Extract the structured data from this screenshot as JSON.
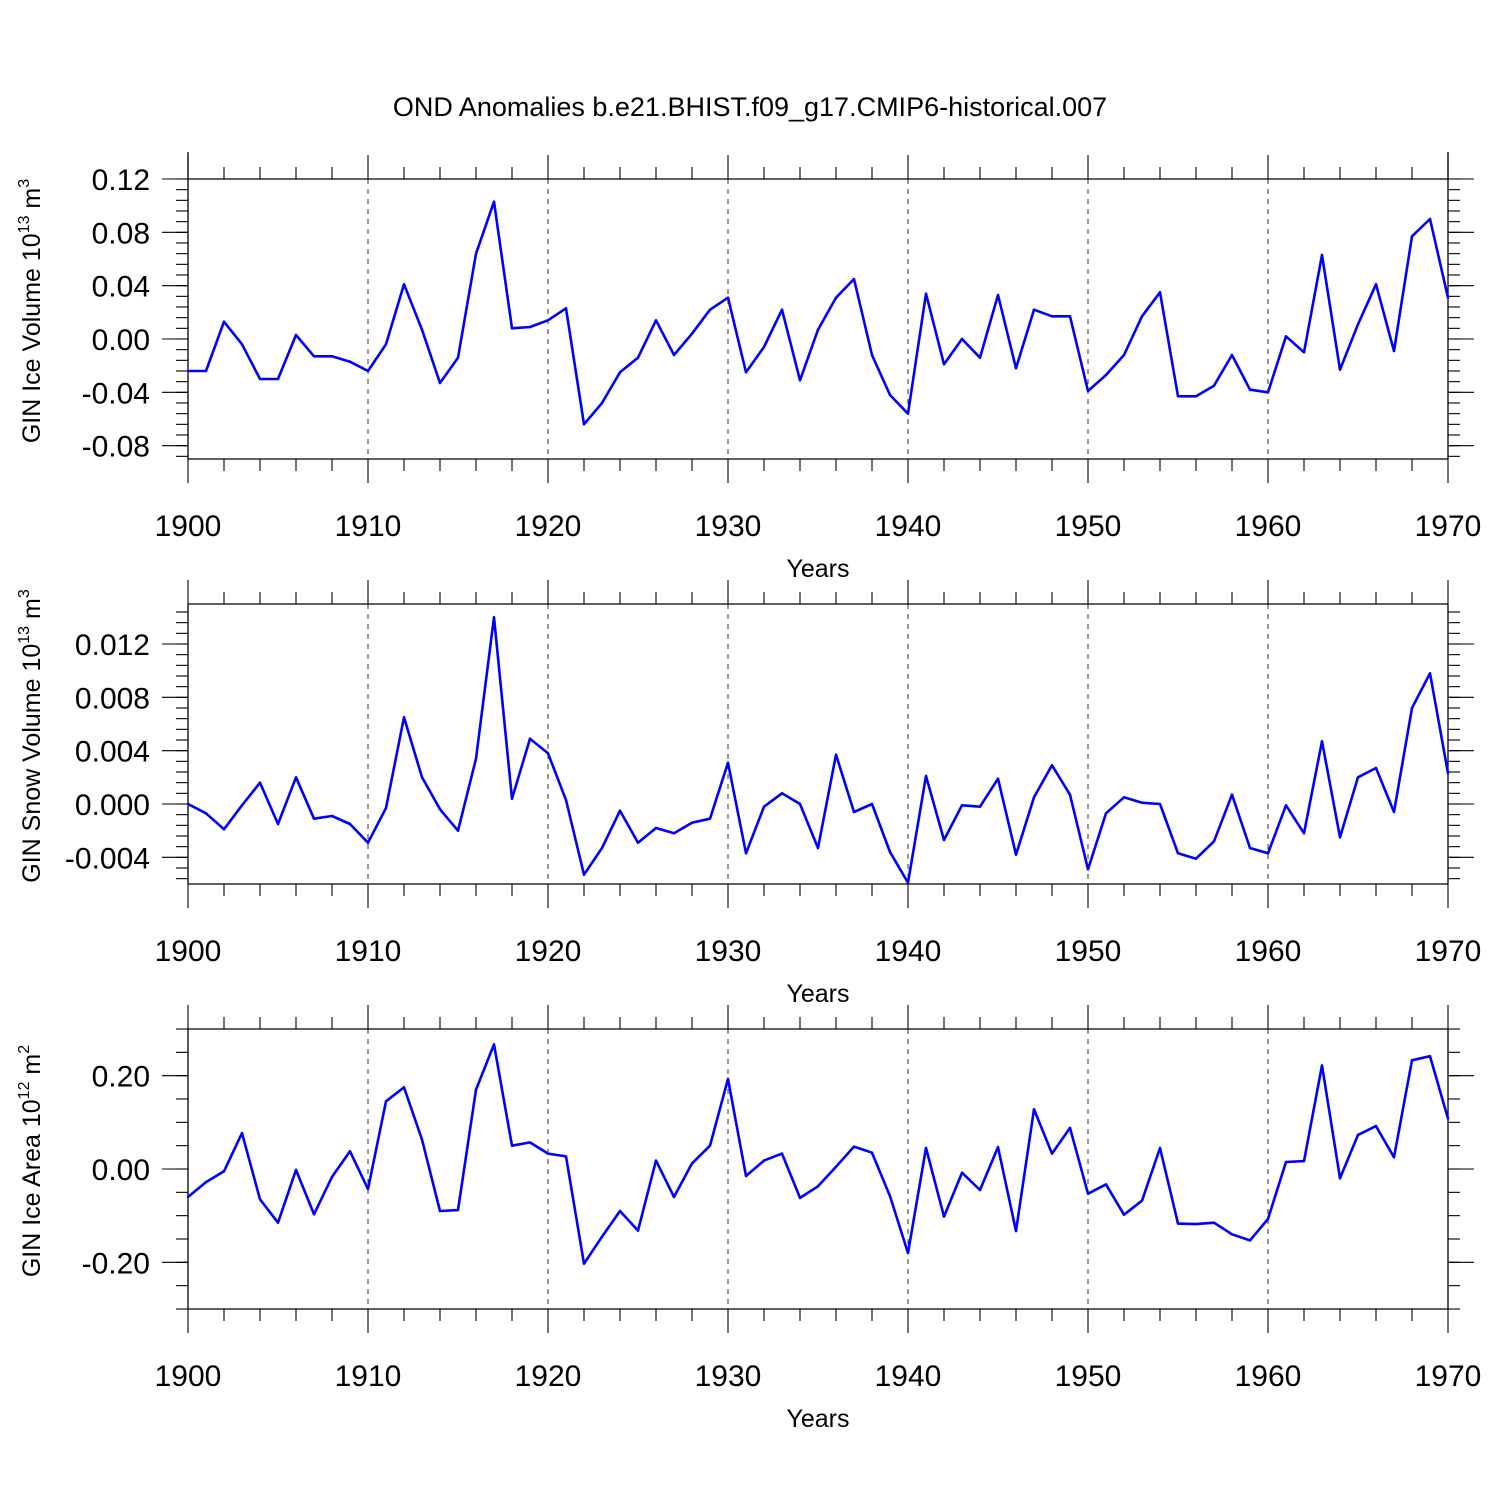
{
  "figure": {
    "title": "OND Anomalies b.e21.BHIST.f09_g17.CMIP6-historical.007",
    "line_color": "#0000ff"
  },
  "chart_data": [
    {
      "type": "line",
      "ylabel_main": "GIN Ice Volume 10",
      "ylabel_exp": "13",
      "ylabel_unit": " m",
      "ylabel_unit_exp": "3",
      "xlabel": "Years",
      "xlim": [
        1900,
        1970
      ],
      "ylim": [
        -0.09,
        0.12
      ],
      "xticks": [
        1900,
        1910,
        1920,
        1930,
        1940,
        1950,
        1960,
        1970
      ],
      "xtick_labels": [
        "1900",
        "1910",
        "1920",
        "1930",
        "1940",
        "1950",
        "1960",
        "1970"
      ],
      "yticks": [
        0.12,
        0.08,
        0.04,
        0.0,
        -0.04,
        -0.08
      ],
      "ytick_labels": [
        "0.12",
        "0.08",
        "0.04",
        "0.00",
        "-0.04",
        "-0.08"
      ],
      "y_minor_step": 0.008,
      "x_start": 1900,
      "values": [
        -0.024,
        -0.024,
        0.013,
        -0.004,
        -0.03,
        -0.03,
        0.003,
        -0.013,
        -0.013,
        -0.017,
        -0.024,
        -0.004,
        0.041,
        0.007,
        -0.033,
        -0.014,
        0.064,
        0.103,
        0.008,
        0.009,
        0.014,
        0.023,
        -0.064,
        -0.048,
        -0.025,
        -0.014,
        0.014,
        -0.012,
        0.004,
        0.022,
        0.031,
        -0.025,
        -0.006,
        0.022,
        -0.031,
        0.007,
        0.031,
        0.045,
        -0.012,
        -0.042,
        -0.056,
        0.034,
        -0.019,
        0.0,
        -0.014,
        0.033,
        -0.022,
        0.022,
        0.017,
        0.017,
        -0.039,
        -0.027,
        -0.012,
        0.017,
        0.035,
        -0.043,
        -0.043,
        -0.035,
        -0.012,
        -0.038,
        -0.04,
        0.002,
        -0.01,
        0.063,
        -0.023,
        0.011,
        0.041,
        -0.009,
        0.077,
        0.09,
        0.031
      ]
    },
    {
      "type": "line",
      "ylabel_main": "GIN Snow Volume 10",
      "ylabel_exp": "13",
      "ylabel_unit": " m",
      "ylabel_unit_exp": "3",
      "xlabel": "Years",
      "xlim": [
        1900,
        1970
      ],
      "ylim": [
        -0.006,
        0.015
      ],
      "xticks": [
        1900,
        1910,
        1920,
        1930,
        1940,
        1950,
        1960,
        1970
      ],
      "xtick_labels": [
        "1900",
        "1910",
        "1920",
        "1930",
        "1940",
        "1950",
        "1960",
        "1970"
      ],
      "yticks": [
        0.012,
        0.008,
        0.004,
        0.0,
        -0.004
      ],
      "ytick_labels": [
        "0.012",
        "0.008",
        "0.004",
        "0.000",
        "-0.004"
      ],
      "y_minor_step": 0.0008,
      "x_start": 1900,
      "values": [
        0.0,
        -0.0007,
        -0.0019,
        -0.0001,
        0.0016,
        -0.0015,
        0.002,
        -0.0011,
        -0.0009,
        -0.0015,
        -0.0029,
        -0.0003,
        0.0065,
        0.002,
        -0.0004,
        -0.002,
        0.0034,
        0.014,
        0.0004,
        0.0049,
        0.0038,
        0.0003,
        -0.0053,
        -0.0033,
        -0.0005,
        -0.0029,
        -0.0018,
        -0.0022,
        -0.0014,
        -0.0011,
        0.0031,
        -0.0037,
        -0.0002,
        0.0008,
        0.0,
        -0.0033,
        0.0037,
        -0.0006,
        0.0,
        -0.0036,
        -0.0059,
        0.0021,
        -0.0027,
        -0.0001,
        -0.0002,
        0.0019,
        -0.0038,
        0.0005,
        0.0029,
        0.0007,
        -0.0049,
        -0.0007,
        0.0005,
        0.0001,
        0.0,
        -0.0037,
        -0.0041,
        -0.0028,
        0.0007,
        -0.0033,
        -0.0037,
        -0.0001,
        -0.0022,
        0.0047,
        -0.0025,
        0.002,
        0.0027,
        -0.0006,
        0.0072,
        0.0098,
        0.0023
      ]
    },
    {
      "type": "line",
      "ylabel_main": "GIN Ice Area 10",
      "ylabel_exp": "12",
      "ylabel_unit": " m",
      "ylabel_unit_exp": "2",
      "xlabel": "Years",
      "xlim": [
        1900,
        1970
      ],
      "ylim": [
        -0.3,
        0.3
      ],
      "xticks": [
        1900,
        1910,
        1920,
        1930,
        1940,
        1950,
        1960,
        1970
      ],
      "xtick_labels": [
        "1900",
        "1910",
        "1920",
        "1930",
        "1940",
        "1950",
        "1960",
        "1970"
      ],
      "yticks": [
        0.2,
        0.0,
        -0.2
      ],
      "ytick_labels": [
        "0.20",
        "0.00",
        "-0.20"
      ],
      "y_minor_step": 0.05,
      "x_start": 1900,
      "values": [
        -0.06,
        -0.028,
        -0.005,
        0.077,
        -0.065,
        -0.115,
        -0.002,
        -0.097,
        -0.017,
        0.038,
        -0.043,
        0.145,
        0.175,
        0.063,
        -0.09,
        -0.088,
        0.17,
        0.267,
        0.05,
        0.057,
        0.033,
        0.027,
        -0.203,
        -0.145,
        -0.09,
        -0.132,
        0.018,
        -0.06,
        0.012,
        0.05,
        0.193,
        -0.015,
        0.018,
        0.033,
        -0.062,
        -0.037,
        0.005,
        0.048,
        0.035,
        -0.058,
        -0.18,
        0.045,
        -0.102,
        -0.008,
        -0.045,
        0.047,
        -0.133,
        0.128,
        0.033,
        0.088,
        -0.053,
        -0.033,
        -0.098,
        -0.068,
        0.045,
        -0.117,
        -0.118,
        -0.115,
        -0.14,
        -0.153,
        -0.107,
        0.015,
        0.017,
        0.222,
        -0.02,
        0.073,
        0.092,
        0.025,
        0.233,
        0.242,
        0.108
      ]
    }
  ]
}
